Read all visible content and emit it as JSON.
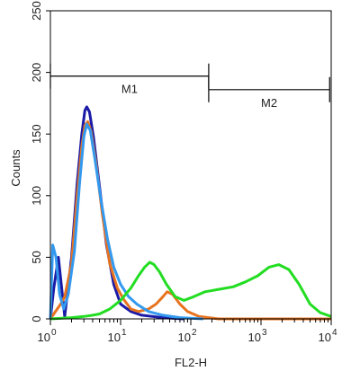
{
  "chart_data": {
    "type": "line",
    "xlabel": "FL2-H",
    "ylabel": "Counts",
    "x_scale": "log",
    "xlim": [
      1,
      10000
    ],
    "ylim": [
      0,
      250
    ],
    "x_ticks": [
      {
        "value": 1,
        "base": "10",
        "exp": "0"
      },
      {
        "value": 10,
        "base": "10",
        "exp": "1"
      },
      {
        "value": 100,
        "base": "10",
        "exp": "2"
      },
      {
        "value": 1000,
        "base": "10",
        "exp": "3"
      },
      {
        "value": 10000,
        "base": "10",
        "exp": "4"
      }
    ],
    "y_ticks": [
      "0",
      "50",
      "100",
      "150",
      "200",
      "250"
    ],
    "grid": false,
    "markers": [
      {
        "label": "M1",
        "from": 1,
        "to": 180,
        "y": 197
      },
      {
        "label": "M2",
        "from": 180,
        "to": 9500,
        "y": 186
      }
    ],
    "series": [
      {
        "color": "#1a1aa6",
        "points": [
          [
            1,
            0
          ],
          [
            1.12,
            25
          ],
          [
            1.3,
            50
          ],
          [
            1.6,
            2
          ],
          [
            2.0,
            50
          ],
          [
            2.4,
            110
          ],
          [
            2.8,
            150
          ],
          [
            3.1,
            169
          ],
          [
            3.3,
            172
          ],
          [
            3.6,
            168
          ],
          [
            4.1,
            148
          ],
          [
            5.0,
            108
          ],
          [
            6.3,
            60
          ],
          [
            8.0,
            28
          ],
          [
            10,
            12
          ],
          [
            14,
            6
          ],
          [
            20,
            3
          ],
          [
            40,
            1
          ],
          [
            80,
            0
          ]
        ]
      },
      {
        "color": "#e8731f",
        "points": [
          [
            1,
            0
          ],
          [
            1.15,
            5
          ],
          [
            1.4,
            12
          ],
          [
            1.6,
            18
          ],
          [
            2.0,
            45
          ],
          [
            2.4,
            100
          ],
          [
            2.8,
            140
          ],
          [
            3.1,
            157
          ],
          [
            3.4,
            160
          ],
          [
            3.8,
            152
          ],
          [
            4.5,
            125
          ],
          [
            5.5,
            85
          ],
          [
            7,
            45
          ],
          [
            9,
            25
          ],
          [
            11,
            16
          ],
          [
            14,
            8
          ],
          [
            18,
            6
          ],
          [
            25,
            8
          ],
          [
            32,
            12
          ],
          [
            40,
            18
          ],
          [
            46,
            22
          ],
          [
            55,
            20
          ],
          [
            70,
            12
          ],
          [
            90,
            6
          ],
          [
            130,
            2
          ],
          [
            250,
            0
          ],
          [
            10000,
            0
          ]
        ]
      },
      {
        "color": "#3399ee",
        "points": [
          [
            1,
            0
          ],
          [
            1.08,
            60
          ],
          [
            1.2,
            50
          ],
          [
            1.35,
            20
          ],
          [
            1.55,
            8
          ],
          [
            1.8,
            20
          ],
          [
            2.2,
            55
          ],
          [
            2.6,
            110
          ],
          [
            3.0,
            148
          ],
          [
            3.3,
            158
          ],
          [
            3.7,
            153
          ],
          [
            4.3,
            130
          ],
          [
            5.3,
            95
          ],
          [
            6.5,
            65
          ],
          [
            8,
            42
          ],
          [
            10,
            28
          ],
          [
            13,
            18
          ],
          [
            17,
            12
          ],
          [
            25,
            6
          ],
          [
            40,
            3
          ],
          [
            70,
            1
          ],
          [
            150,
            0
          ]
        ]
      },
      {
        "color": "#22dd22",
        "points": [
          [
            1,
            0
          ],
          [
            2,
            1
          ],
          [
            3,
            2
          ],
          [
            4,
            3
          ],
          [
            5,
            4
          ],
          [
            7,
            8
          ],
          [
            10,
            15
          ],
          [
            14,
            25
          ],
          [
            18,
            35
          ],
          [
            22,
            42
          ],
          [
            26,
            46
          ],
          [
            30,
            44
          ],
          [
            36,
            38
          ],
          [
            45,
            28
          ],
          [
            60,
            18
          ],
          [
            80,
            15
          ],
          [
            110,
            18
          ],
          [
            160,
            22
          ],
          [
            250,
            24
          ],
          [
            400,
            26
          ],
          [
            600,
            30
          ],
          [
            900,
            35
          ],
          [
            1300,
            42
          ],
          [
            1800,
            44
          ],
          [
            2500,
            40
          ],
          [
            3500,
            28
          ],
          [
            5000,
            12
          ],
          [
            7000,
            5
          ],
          [
            10000,
            2
          ]
        ]
      }
    ]
  }
}
